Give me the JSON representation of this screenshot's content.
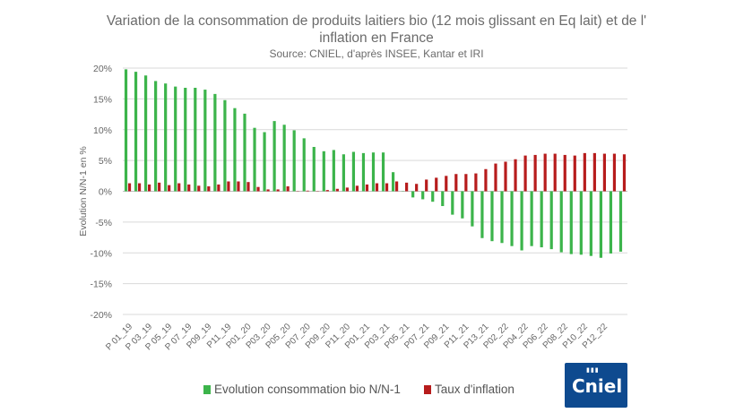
{
  "chart_data": {
    "type": "bar",
    "title": "Variation de la consommation de produits laitiers bio (12 mois glissant en Eq lait) et de l' inflation en France",
    "subtitle": "Source: CNIEL, d'après INSEE, Kantar et IRI",
    "ylabel": "Evolution N/N-1 en %",
    "ylim": [
      -20,
      20
    ],
    "yticks": [
      20,
      15,
      10,
      5,
      0,
      -5,
      -10,
      -15,
      -20
    ],
    "ytick_labels": [
      "20%",
      "15%",
      "10%",
      "5%",
      "0%",
      "-5%",
      "-10%",
      "-15%",
      "-20%"
    ],
    "xtick_labels": [
      "P 01_19",
      "P 03_19",
      "P 05_19",
      "P 07_19",
      "P09_19",
      "P11_19",
      "P01_20",
      "P03_20",
      "P05_20",
      "P07_20",
      "P09_20",
      "P11_20",
      "P01_21",
      "P03_21",
      "P05_21",
      "P07_21",
      "P09_21",
      "P11_21",
      "P13_21",
      "P02_22",
      "P04_22",
      "P06_22",
      "P08_22",
      "P10_22",
      "P12_22"
    ],
    "series": [
      {
        "name": "Evolution consommation bio N/N-1",
        "color": "#3cb44b",
        "values": [
          19.8,
          19.4,
          18.8,
          17.9,
          17.5,
          17.0,
          16.8,
          16.8,
          16.5,
          15.8,
          14.8,
          13.5,
          12.6,
          10.3,
          9.6,
          11.4,
          10.8,
          9.9,
          8.6,
          7.2,
          6.5,
          6.7,
          6.0,
          6.4,
          6.2,
          6.3,
          6.3,
          3.1,
          0.0,
          -1.0,
          -1.3,
          -1.7,
          -2.4,
          -3.8,
          -4.4,
          -5.7,
          -7.6,
          -8.1,
          -8.4,
          -8.9,
          -9.6,
          -8.9,
          -9.1,
          -9.4,
          -9.9,
          -10.2,
          -10.3,
          -10.5,
          -10.8,
          -10.1,
          -9.8
        ]
      },
      {
        "name": "Taux d'inflation",
        "color": "#b71c1c",
        "values": [
          1.3,
          1.3,
          1.1,
          1.4,
          1.0,
          1.3,
          1.1,
          0.9,
          0.8,
          1.1,
          1.6,
          1.6,
          1.5,
          0.7,
          0.3,
          0.3,
          0.8,
          0.0,
          0.1,
          0.0,
          0.2,
          0.4,
          0.6,
          0.9,
          1.1,
          1.3,
          1.3,
          1.6,
          1.4,
          1.2,
          1.9,
          2.2,
          2.5,
          2.8,
          2.8,
          2.9,
          3.6,
          4.5,
          4.8,
          5.2,
          5.8,
          5.9,
          6.1,
          6.1,
          5.9,
          5.8,
          6.2,
          6.2,
          6.1,
          6.1,
          6.0
        ]
      }
    ],
    "legend": "bottom"
  },
  "logo": {
    "name": "Cniel",
    "icon": "cniel-logo-icon"
  }
}
